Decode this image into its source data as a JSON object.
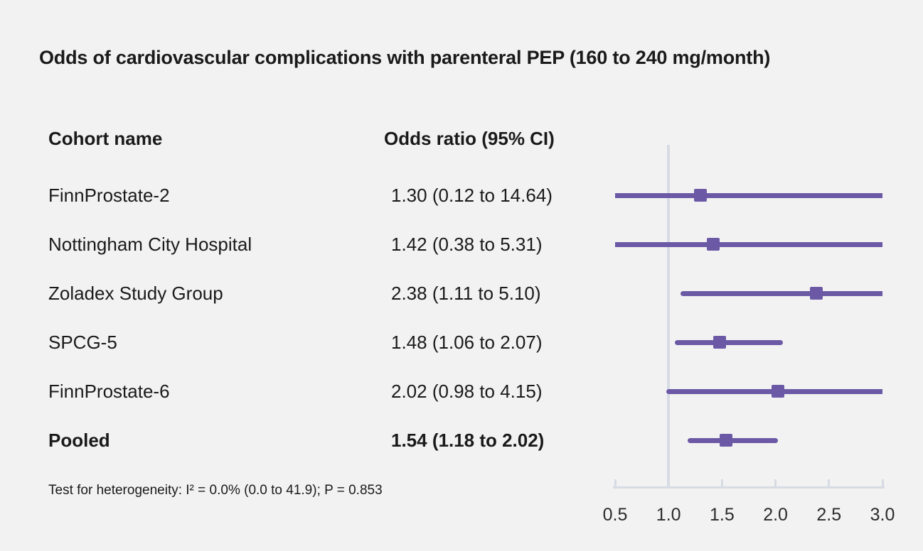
{
  "title": "Odds of cardiovascular complications with parenteral PEP (160 to 240 mg/month)",
  "table": {
    "cohort_header": "Cohort name",
    "odds_header": "Odds ratio (95% CI)"
  },
  "footnote": "Test for heterogeneity: I² = 0.0% (0.0 to 41.9); P = 0.853",
  "colors": {
    "accent": "#6b59a6",
    "axis": "#d7dbe3",
    "background": "#f2f2f2",
    "text": "#1a1a1a"
  },
  "chart_data": {
    "type": "forest",
    "title": "Odds of cardiovascular complications with parenteral PEP (160 to 240 mg/month)",
    "xlim": [
      0.5,
      3.0
    ],
    "reference_line": 1.0,
    "x_ticks": [
      0.5,
      1.0,
      1.5,
      2.0,
      2.5,
      3.0
    ],
    "x_tick_labels": [
      "0.5",
      "1.0",
      "1.5",
      "2.0",
      "2.5",
      "3.0"
    ],
    "rows": [
      {
        "label": "FinnProstate-2",
        "display": "1.30 (0.12 to 14.64)",
        "or": 1.3,
        "ci_low": 0.12,
        "ci_high": 14.64,
        "bold": false
      },
      {
        "label": "Nottingham City Hospital",
        "display": "1.42 (0.38 to 5.31)",
        "or": 1.42,
        "ci_low": 0.38,
        "ci_high": 5.31,
        "bold": false
      },
      {
        "label": "Zoladex Study Group",
        "display": "2.38 (1.11 to 5.10)",
        "or": 2.38,
        "ci_low": 1.11,
        "ci_high": 5.1,
        "bold": false
      },
      {
        "label": "SPCG-5",
        "display": "1.48 (1.06 to 2.07)",
        "or": 1.48,
        "ci_low": 1.06,
        "ci_high": 2.07,
        "bold": false
      },
      {
        "label": "FinnProstate-6",
        "display": "2.02 (0.98 to 4.15)",
        "or": 2.02,
        "ci_low": 0.98,
        "ci_high": 4.15,
        "bold": false
      },
      {
        "label": "Pooled",
        "display": "1.54 (1.18 to 2.02)",
        "or": 1.54,
        "ci_low": 1.18,
        "ci_high": 2.02,
        "bold": true
      }
    ]
  }
}
